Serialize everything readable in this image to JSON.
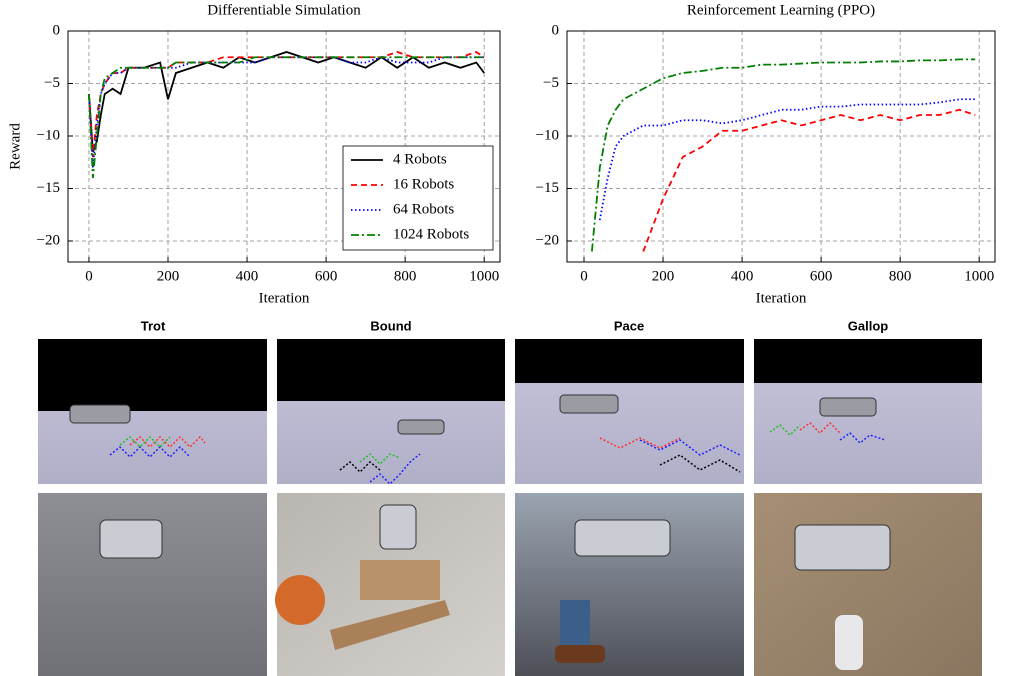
{
  "chart_data": [
    {
      "type": "line",
      "title": "Differentiable Simulation",
      "xlabel": "Iteration",
      "ylabel": "Reward",
      "x": [
        0,
        10,
        20,
        30,
        40,
        60,
        80,
        100,
        140,
        180,
        200,
        220,
        260,
        300,
        340,
        380,
        420,
        460,
        500,
        540,
        580,
        620,
        660,
        700,
        740,
        780,
        820,
        860,
        900,
        940,
        980,
        1000
      ],
      "series": [
        {
          "name": "4 Robots",
          "color": "#000000",
          "dash": "solid",
          "values": [
            -6,
            -11.5,
            -10.5,
            -8,
            -6,
            -5.5,
            -6,
            -3.5,
            -3.5,
            -3,
            -6.5,
            -4,
            -3.5,
            -3,
            -3.5,
            -2.5,
            -3,
            -2.5,
            -2,
            -2.5,
            -3,
            -2.5,
            -3,
            -3.5,
            -2.5,
            -3.5,
            -2.5,
            -3.5,
            -3,
            -3.5,
            -3,
            -4
          ]
        },
        {
          "name": "16 Robots",
          "color": "#ff0000",
          "dash": "dashed",
          "values": [
            -6,
            -12,
            -8,
            -6,
            -5,
            -4,
            -4,
            -3.5,
            -3.5,
            -3.5,
            -3.5,
            -3,
            -3,
            -3,
            -2.5,
            -2.5,
            -2.5,
            -2.5,
            -2.5,
            -2.5,
            -2.5,
            -2.5,
            -2.5,
            -2.5,
            -2.5,
            -2,
            -2.5,
            -2.5,
            -2.5,
            -2.5,
            -2,
            -2.5
          ]
        },
        {
          "name": "64 Robots",
          "color": "#0000ff",
          "dash": "dotted",
          "values": [
            -6,
            -13,
            -9,
            -6,
            -5,
            -4,
            -4,
            -3.5,
            -3.5,
            -3.5,
            -3.5,
            -3.5,
            -3,
            -3,
            -3,
            -3,
            -3,
            -2.5,
            -2.5,
            -2.5,
            -2.5,
            -2.5,
            -3,
            -3,
            -2.5,
            -3,
            -3,
            -3,
            -2.5,
            -2.5,
            -2.5,
            -2.5
          ]
        },
        {
          "name": "1024 Robots",
          "color": "#008000",
          "dash": "dashdot",
          "values": [
            -6,
            -14,
            -10,
            -6,
            -4.5,
            -4,
            -3.5,
            -3.5,
            -3.5,
            -3.5,
            -3.5,
            -3,
            -3,
            -3,
            -3,
            -3,
            -2.5,
            -2.5,
            -2.5,
            -2.5,
            -2.5,
            -2.5,
            -2.5,
            -2.5,
            -2.5,
            -2.5,
            -2.5,
            -2.5,
            -2.5,
            -2.5,
            -2.5,
            -2.5
          ]
        }
      ],
      "xlim": [
        -53,
        1040
      ],
      "ylim": [
        -22,
        0
      ],
      "xticks": [
        0,
        200,
        400,
        600,
        800,
        1000
      ],
      "yticks": [
        0,
        {
          "value": -5,
          "label": "−5"
        },
        {
          "value": -10,
          "label": "−10"
        },
        {
          "value": -15,
          "label": "−15"
        },
        {
          "value": -20,
          "label": "−20"
        }
      ],
      "grid": true,
      "legend": "lower right"
    },
    {
      "type": "line",
      "title": "Reinforcement Learning (PPO)",
      "xlabel": "Iteration",
      "x": [
        0,
        20,
        40,
        60,
        80,
        100,
        150,
        200,
        250,
        300,
        350,
        400,
        450,
        500,
        550,
        600,
        650,
        700,
        750,
        800,
        850,
        900,
        950,
        990
      ],
      "series": [
        {
          "color": "#ff0000",
          "dash": "dashed",
          "values": [
            null,
            null,
            null,
            null,
            null,
            null,
            -21,
            -16,
            -12,
            -11,
            -9.5,
            -9.5,
            -9,
            -8.5,
            -9,
            -8.5,
            -8,
            -8.5,
            -8,
            -8.5,
            -8,
            -8,
            -7.5,
            -8
          ]
        },
        {
          "color": "#0000ff",
          "dash": "dotted",
          "values": [
            null,
            null,
            -18,
            -14,
            -11,
            -10,
            -9,
            -9,
            -8.5,
            -8.5,
            -8.8,
            -8.5,
            -8,
            -7.5,
            -7.5,
            -7.2,
            -7.2,
            -7,
            -7,
            -7,
            -7,
            -6.8,
            -6.5,
            -6.5
          ]
        },
        {
          "color": "#008000",
          "dash": "dashdot",
          "values": [
            null,
            -21,
            -13,
            -9,
            -7.5,
            -6.5,
            -5.5,
            -4.5,
            -4,
            -3.8,
            -3.5,
            -3.5,
            -3.2,
            -3.2,
            -3.1,
            -3,
            -3,
            -3,
            -2.9,
            -2.9,
            -2.8,
            -2.8,
            -2.7,
            -2.7
          ]
        }
      ],
      "xlim": [
        -43,
        1040
      ],
      "ylim": [
        -22,
        0
      ],
      "xticks": [
        0,
        200,
        400,
        600,
        800,
        1000
      ],
      "yticks": [
        0,
        {
          "value": -5,
          "label": "−5"
        },
        {
          "value": -10,
          "label": "−10"
        },
        {
          "value": -15,
          "label": "−15"
        },
        {
          "value": -20,
          "label": "−20"
        }
      ],
      "grid": true
    }
  ],
  "gaits": [
    "Trot",
    "Bound",
    "Pace",
    "Gallop"
  ]
}
